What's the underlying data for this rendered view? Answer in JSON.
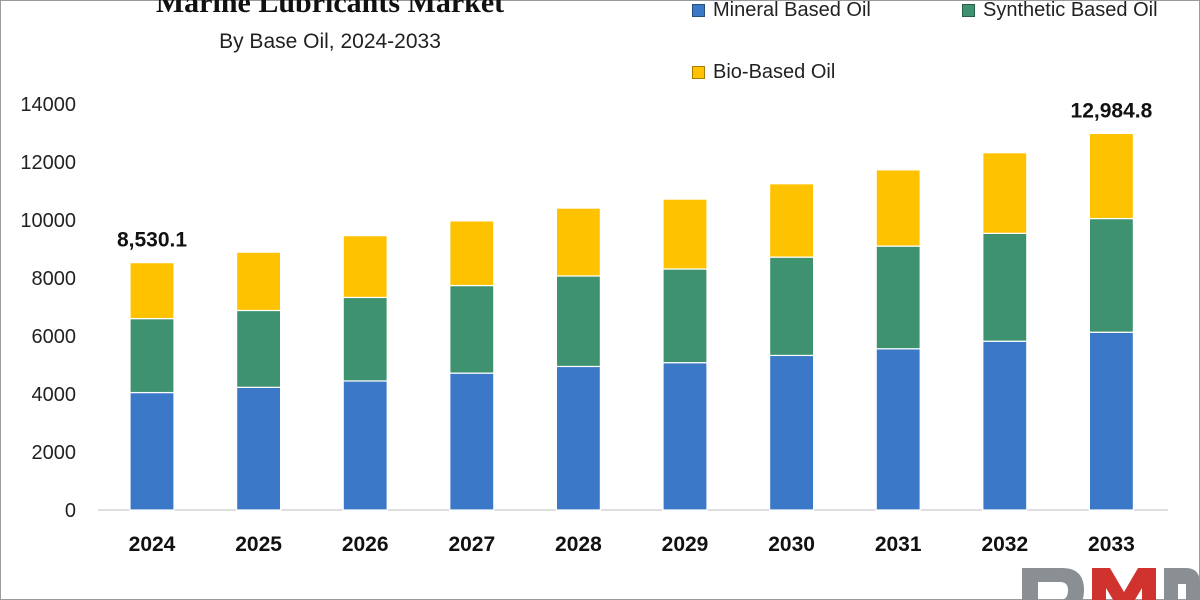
{
  "colors": {
    "mineral": "#3b78c7",
    "synthetic": "#3f9270",
    "bio": "#ffc200",
    "logo_gray": "#8a8f94",
    "logo_red": "#d0332e"
  },
  "chart_data": {
    "type": "bar",
    "stacked": true,
    "title": "Marine Lubricants Market",
    "subtitle": "By Base Oil, 2024-2033",
    "categories": [
      "2024",
      "2025",
      "2026",
      "2027",
      "2028",
      "2029",
      "2030",
      "2031",
      "2032",
      "2033"
    ],
    "series": [
      {
        "name": "Mineral Based Oil",
        "values": [
          4050,
          4230,
          4450,
          4720,
          4950,
          5080,
          5330,
          5560,
          5820,
          6130
        ]
      },
      {
        "name": "Synthetic Based Oil",
        "values": [
          2550,
          2650,
          2880,
          3020,
          3120,
          3230,
          3390,
          3540,
          3720,
          3920
        ]
      },
      {
        "name": "Bio-Based Oil",
        "values": [
          1930.1,
          2010,
          2130,
          2230,
          2340,
          2410,
          2530,
          2630,
          2780,
          2934.8
        ]
      }
    ],
    "annotations": [
      {
        "category": "2024",
        "text": "8,530.1"
      },
      {
        "category": "2033",
        "text": "12,984.8"
      }
    ],
    "yticks": [
      "0",
      "2000",
      "4000",
      "6000",
      "8000",
      "10000",
      "12000",
      "14000"
    ],
    "ylim": [
      0,
      14000
    ],
    "grid": false,
    "legend": "top-right"
  }
}
